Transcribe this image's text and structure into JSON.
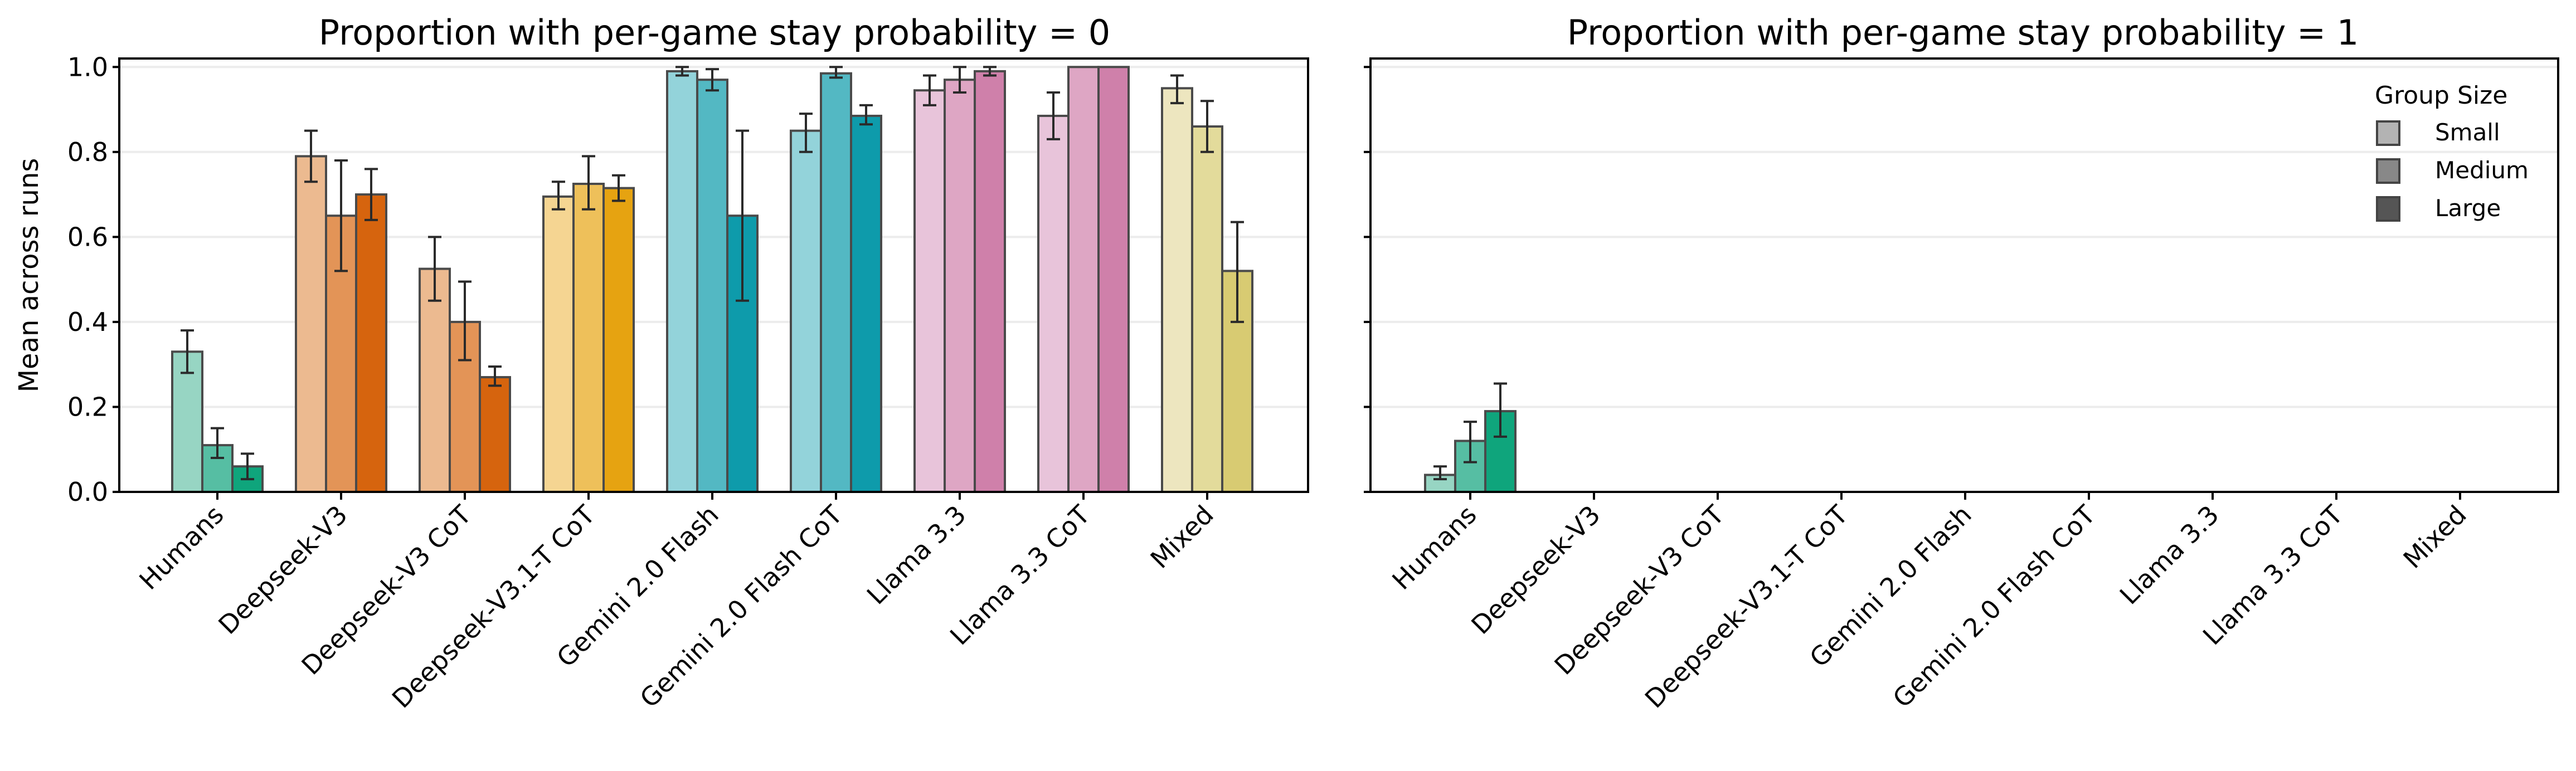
{
  "chart_data": [
    {
      "type": "bar",
      "title": "Proportion with per-game stay probability = 0",
      "ylabel": "Mean across runs",
      "xlabel": "",
      "ylim": [
        0,
        1.02
      ],
      "yticks": [
        "0.0",
        "0.2",
        "0.4",
        "0.6",
        "0.8",
        "1.0"
      ],
      "grid": "horizontal",
      "categories": [
        "Humans",
        "Deepseek-V3",
        "Deepseek-V3 CoT",
        "Deepseek-V3.1-T CoT",
        "Gemini 2.0 Flash",
        "Gemini 2.0 Flash CoT",
        "Llama 3.3",
        "Llama 3.3 CoT",
        "Mixed"
      ],
      "series": [
        {
          "name": "Small",
          "values": [
            0.33,
            0.79,
            0.525,
            0.695,
            0.99,
            0.85,
            0.945,
            0.885,
            0.95
          ],
          "err_low": [
            0.28,
            0.73,
            0.45,
            0.665,
            0.98,
            0.8,
            0.91,
            0.83,
            0.915
          ],
          "err_high": [
            0.38,
            0.85,
            0.6,
            0.73,
            1.0,
            0.89,
            0.98,
            0.94,
            0.98
          ]
        },
        {
          "name": "Medium",
          "values": [
            0.11,
            0.65,
            0.4,
            0.725,
            0.97,
            0.985,
            0.97,
            1.0,
            0.86
          ],
          "err_low": [
            0.08,
            0.52,
            0.31,
            0.665,
            0.945,
            0.975,
            0.94,
            1.0,
            0.8
          ],
          "err_high": [
            0.15,
            0.78,
            0.495,
            0.79,
            0.995,
            1.0,
            1.0,
            1.0,
            0.92
          ]
        },
        {
          "name": "Large",
          "values": [
            0.06,
            0.7,
            0.27,
            0.715,
            0.65,
            0.885,
            0.99,
            1.0,
            0.52
          ],
          "err_low": [
            0.03,
            0.64,
            0.25,
            0.685,
            0.45,
            0.865,
            0.98,
            1.0,
            0.4
          ],
          "err_high": [
            0.09,
            0.76,
            0.295,
            0.745,
            0.85,
            0.91,
            1.0,
            1.0,
            0.635
          ]
        }
      ]
    },
    {
      "type": "bar",
      "title": "Proportion with per-game stay probability = 1",
      "ylabel": "",
      "xlabel": "",
      "ylim": [
        0,
        1.02
      ],
      "shared_y": true,
      "grid": "horizontal",
      "categories": [
        "Humans",
        "Deepseek-V3",
        "Deepseek-V3 CoT",
        "Deepseek-V3.1-T CoT",
        "Gemini 2.0 Flash",
        "Gemini 2.0 Flash CoT",
        "Llama 3.3",
        "Llama 3.3 CoT",
        "Mixed"
      ],
      "series": [
        {
          "name": "Small",
          "values": [
            0.04,
            0,
            0,
            0,
            0,
            0,
            0,
            0,
            0
          ],
          "err_low": [
            0.03,
            0,
            0,
            0,
            0,
            0,
            0,
            0,
            0
          ],
          "err_high": [
            0.06,
            0,
            0,
            0,
            0,
            0,
            0,
            0,
            0
          ]
        },
        {
          "name": "Medium",
          "values": [
            0.12,
            0,
            0,
            0,
            0,
            0,
            0,
            0,
            0
          ],
          "err_low": [
            0.07,
            0,
            0,
            0,
            0,
            0,
            0,
            0,
            0
          ],
          "err_high": [
            0.165,
            0,
            0,
            0,
            0,
            0,
            0,
            0,
            0
          ]
        },
        {
          "name": "Large",
          "values": [
            0.19,
            0,
            0,
            0,
            0,
            0,
            0,
            0,
            0
          ],
          "err_low": [
            0.13,
            0,
            0,
            0,
            0,
            0,
            0,
            0,
            0
          ],
          "err_high": [
            0.255,
            0,
            0,
            0,
            0,
            0,
            0,
            0,
            0
          ]
        }
      ],
      "legend": {
        "title": "Group Size",
        "placement": "top-right",
        "entries": [
          "Small",
          "Medium",
          "Large"
        ],
        "swatch_colors": [
          "#b3b3b3",
          "#888888",
          "#555555"
        ]
      }
    }
  ],
  "colors": {
    "Humans": [
      "#97d5c3",
      "#56bea3",
      "#0fa57c"
    ],
    "Deepseek-V3": [
      "#ecba90",
      "#e39457",
      "#d6640e"
    ],
    "Deepseek-V3 CoT": [
      "#ecba90",
      "#e39457",
      "#d6640e"
    ],
    "Deepseek-V3.1-T CoT": [
      "#f5d592",
      "#eec05a",
      "#e6a311"
    ],
    "Gemini 2.0 Flash": [
      "#93d3da",
      "#53b8c3",
      "#0e9bab"
    ],
    "Gemini 2.0 Flash CoT": [
      "#93d3da",
      "#53b8c3",
      "#0e9bab"
    ],
    "Llama 3.3": [
      "#e8c4da",
      "#dea6c4",
      "#cf80aa"
    ],
    "Llama 3.3 CoT": [
      "#e8c4da",
      "#dea6c4",
      "#cf80aa"
    ],
    "Mixed": [
      "#ede6bf",
      "#e3db9b",
      "#d8cb72"
    ]
  }
}
